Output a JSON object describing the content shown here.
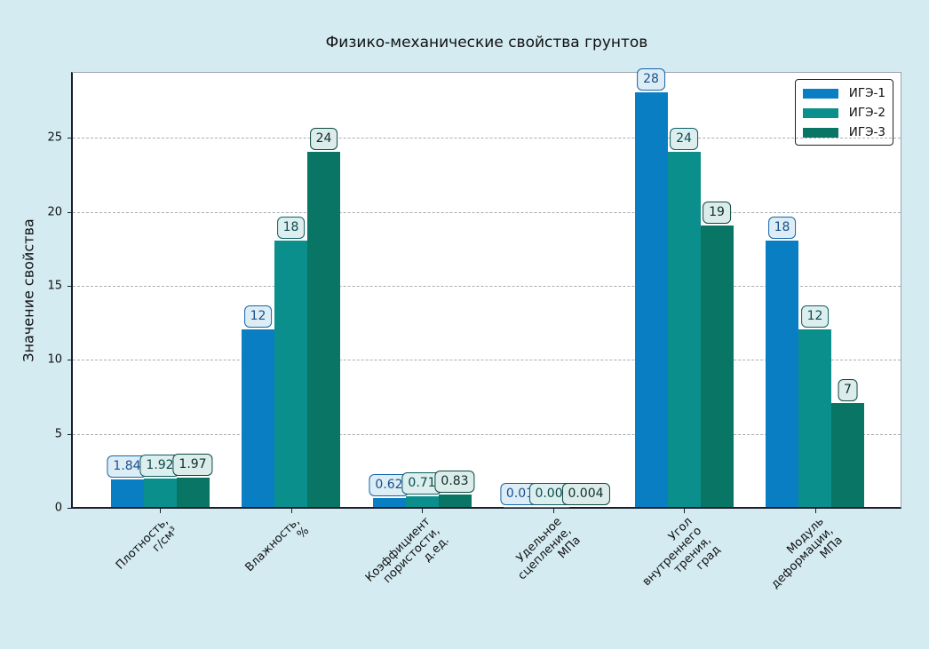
{
  "chart_data": {
    "type": "bar",
    "title": "Физико-механические свойства грунтов",
    "xlabel": "",
    "ylabel": "Значение свойства",
    "ylim": [
      0,
      29.4
    ],
    "yticks": [
      0,
      5,
      10,
      15,
      20,
      25
    ],
    "grid": "y-dashed",
    "legend_position": "upper right",
    "categories": [
      "Плотность,\nг/см³",
      "Влажность,\n%",
      "Коэффициент\nпористости,\nд.ед.",
      "Удельное\nсцепление,\nМПа",
      "Угол\nвнутреннего\nтрения,\nград",
      "Модуль\nдеформации,\nМПа"
    ],
    "series": [
      {
        "name": "ИГЭ-1",
        "color": "#0a7ec2",
        "values": [
          1.84,
          12,
          0.62,
          0.01,
          28,
          18
        ],
        "labels": [
          "1.84",
          "12",
          "0.62",
          "0.01",
          "28",
          "18"
        ]
      },
      {
        "name": "ИГЭ-2",
        "color": "#0b8f8c",
        "values": [
          1.92,
          18,
          0.71,
          0.008,
          24,
          12
        ],
        "labels": [
          "1.92",
          "18",
          "0.71",
          "0.008",
          "24",
          "12"
        ]
      },
      {
        "name": "ИГЭ-3",
        "color": "#087565",
        "values": [
          1.97,
          24,
          0.83,
          0.004,
          19,
          7
        ],
        "labels": [
          "1.97",
          "24",
          "0.83",
          "0.004",
          "19",
          "7"
        ]
      }
    ]
  }
}
